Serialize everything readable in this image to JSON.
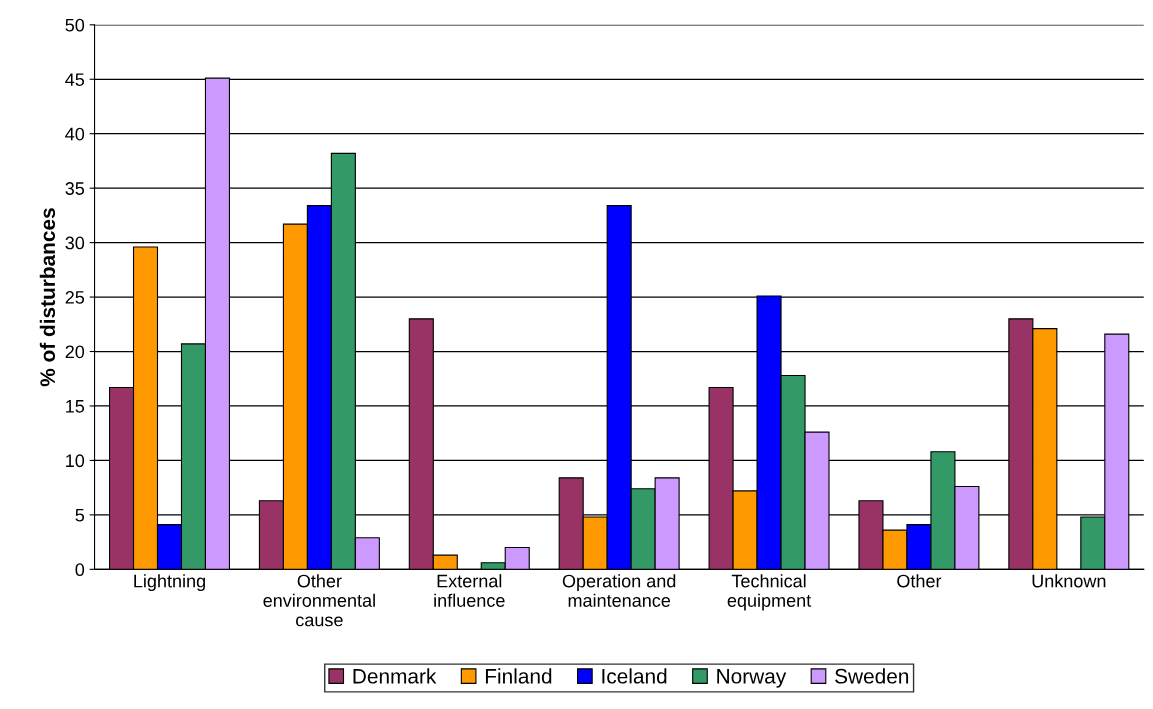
{
  "chart_data": {
    "type": "bar",
    "ylabel": "% of disturbances",
    "categories": [
      "Lightning",
      "Other\nenvironmental\ncause",
      "External\ninfluence",
      "Operation and\nmaintenance",
      "Technical\nequipment",
      "Other",
      "Unknown"
    ],
    "series": [
      {
        "name": "Denmark",
        "color": "#993366",
        "values": [
          16.7,
          6.3,
          23.0,
          8.4,
          16.7,
          6.3,
          23.0
        ]
      },
      {
        "name": "Finland",
        "color": "#ff9900",
        "values": [
          29.6,
          31.7,
          1.3,
          4.8,
          7.2,
          3.6,
          22.1
        ]
      },
      {
        "name": "Iceland",
        "color": "#0000ff",
        "values": [
          4.1,
          33.4,
          null,
          33.4,
          25.1,
          4.1,
          null
        ]
      },
      {
        "name": "Norway",
        "color": "#339966",
        "values": [
          20.7,
          38.2,
          0.6,
          7.4,
          17.8,
          10.8,
          4.8
        ]
      },
      {
        "name": "Sweden",
        "color": "#cc99ff",
        "values": [
          45.1,
          2.9,
          2.0,
          8.4,
          12.6,
          7.6,
          21.6
        ]
      }
    ],
    "ylim": [
      0,
      50
    ],
    "yticks": [
      0,
      5,
      10,
      15,
      20,
      25,
      30,
      35,
      40,
      45,
      50
    ],
    "grid": "y",
    "legend": "bottom"
  }
}
